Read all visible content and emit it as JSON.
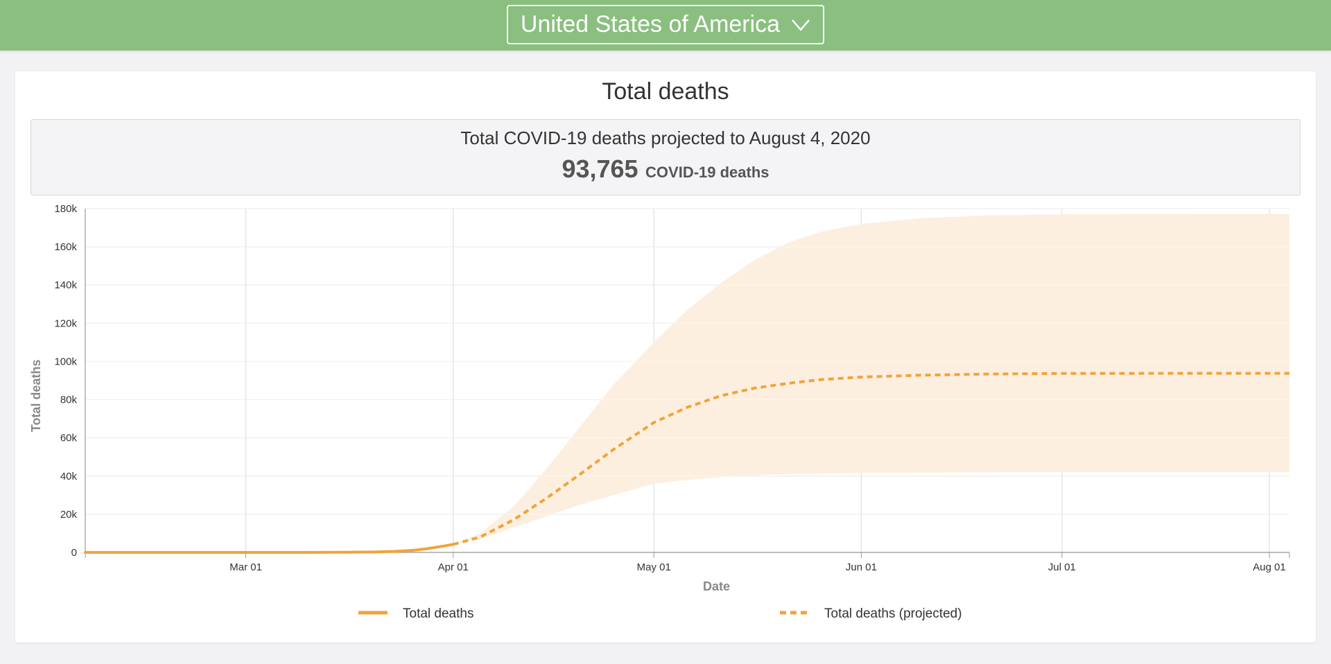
{
  "header": {
    "country": "United States of America",
    "dropdown_icon": "chevron-down-icon",
    "background_color": "#8abf80"
  },
  "card": {
    "title": "Total deaths",
    "summary_line": "Total COVID-19 deaths projected to August 4, 2020",
    "summary_value": "93,765",
    "summary_unit": "COVID-19 deaths"
  },
  "chart_data": {
    "type": "line",
    "xlabel": "Date",
    "ylabel": "Total deaths",
    "x_tick_labels": [
      "Mar 01",
      "Apr 01",
      "May 01",
      "Jun 01",
      "Jul 01",
      "Aug 01"
    ],
    "x_tick_dates": [
      "2020-03-01",
      "2020-04-01",
      "2020-05-01",
      "2020-06-01",
      "2020-07-01",
      "2020-08-01"
    ],
    "x_range": [
      "2020-02-06",
      "2020-08-04"
    ],
    "y_tick_labels": [
      "0",
      "20k",
      "40k",
      "60k",
      "80k",
      "100k",
      "120k",
      "140k",
      "160k",
      "180k"
    ],
    "y_ticks": [
      0,
      20000,
      40000,
      60000,
      80000,
      100000,
      120000,
      140000,
      160000,
      180000
    ],
    "ylim": [
      0,
      180000
    ],
    "grid": true,
    "legend_position": "bottom",
    "colors": {
      "line": "#f2a33a",
      "band": "#fcefdf"
    },
    "series": [
      {
        "name": "Total deaths",
        "style": "solid",
        "points": [
          [
            "2020-02-06",
            0
          ],
          [
            "2020-03-01",
            0
          ],
          [
            "2020-03-10",
            20
          ],
          [
            "2020-03-16",
            90
          ],
          [
            "2020-03-20",
            220
          ],
          [
            "2020-03-23",
            500
          ],
          [
            "2020-03-26",
            1100
          ],
          [
            "2020-03-28",
            1900
          ],
          [
            "2020-03-30",
            3000
          ],
          [
            "2020-04-01",
            4200
          ]
        ]
      },
      {
        "name": "Total deaths (projected)",
        "style": "dashed",
        "points": [
          [
            "2020-04-01",
            4200
          ],
          [
            "2020-04-05",
            8000
          ],
          [
            "2020-04-10",
            17000
          ],
          [
            "2020-04-15",
            28500
          ],
          [
            "2020-04-20",
            41000
          ],
          [
            "2020-04-25",
            54000
          ],
          [
            "2020-05-01",
            68000
          ],
          [
            "2020-05-06",
            76000
          ],
          [
            "2020-05-11",
            82000
          ],
          [
            "2020-05-16",
            86000
          ],
          [
            "2020-05-21",
            88500
          ],
          [
            "2020-05-26",
            90500
          ],
          [
            "2020-06-01",
            91800
          ],
          [
            "2020-06-10",
            92800
          ],
          [
            "2020-06-20",
            93400
          ],
          [
            "2020-07-01",
            93700
          ],
          [
            "2020-07-15",
            93750
          ],
          [
            "2020-08-04",
            93765
          ]
        ]
      }
    ],
    "uncertainty_band": {
      "dates": [
        "2020-04-01",
        "2020-04-05",
        "2020-04-10",
        "2020-04-15",
        "2020-04-20",
        "2020-04-25",
        "2020-05-01",
        "2020-05-06",
        "2020-05-11",
        "2020-05-16",
        "2020-05-21",
        "2020-05-26",
        "2020-06-01",
        "2020-06-10",
        "2020-06-20",
        "2020-07-01",
        "2020-07-15",
        "2020-08-04"
      ],
      "lower": [
        4200,
        7000,
        13000,
        19000,
        25000,
        30000,
        36000,
        38000,
        39500,
        40500,
        41000,
        41300,
        41600,
        41800,
        41900,
        42000,
        42000,
        42000
      ],
      "upper": [
        4200,
        10000,
        24000,
        44000,
        66000,
        88000,
        110000,
        127000,
        141000,
        153000,
        162000,
        168000,
        172000,
        175000,
        176500,
        177000,
        177200,
        177300
      ]
    }
  }
}
